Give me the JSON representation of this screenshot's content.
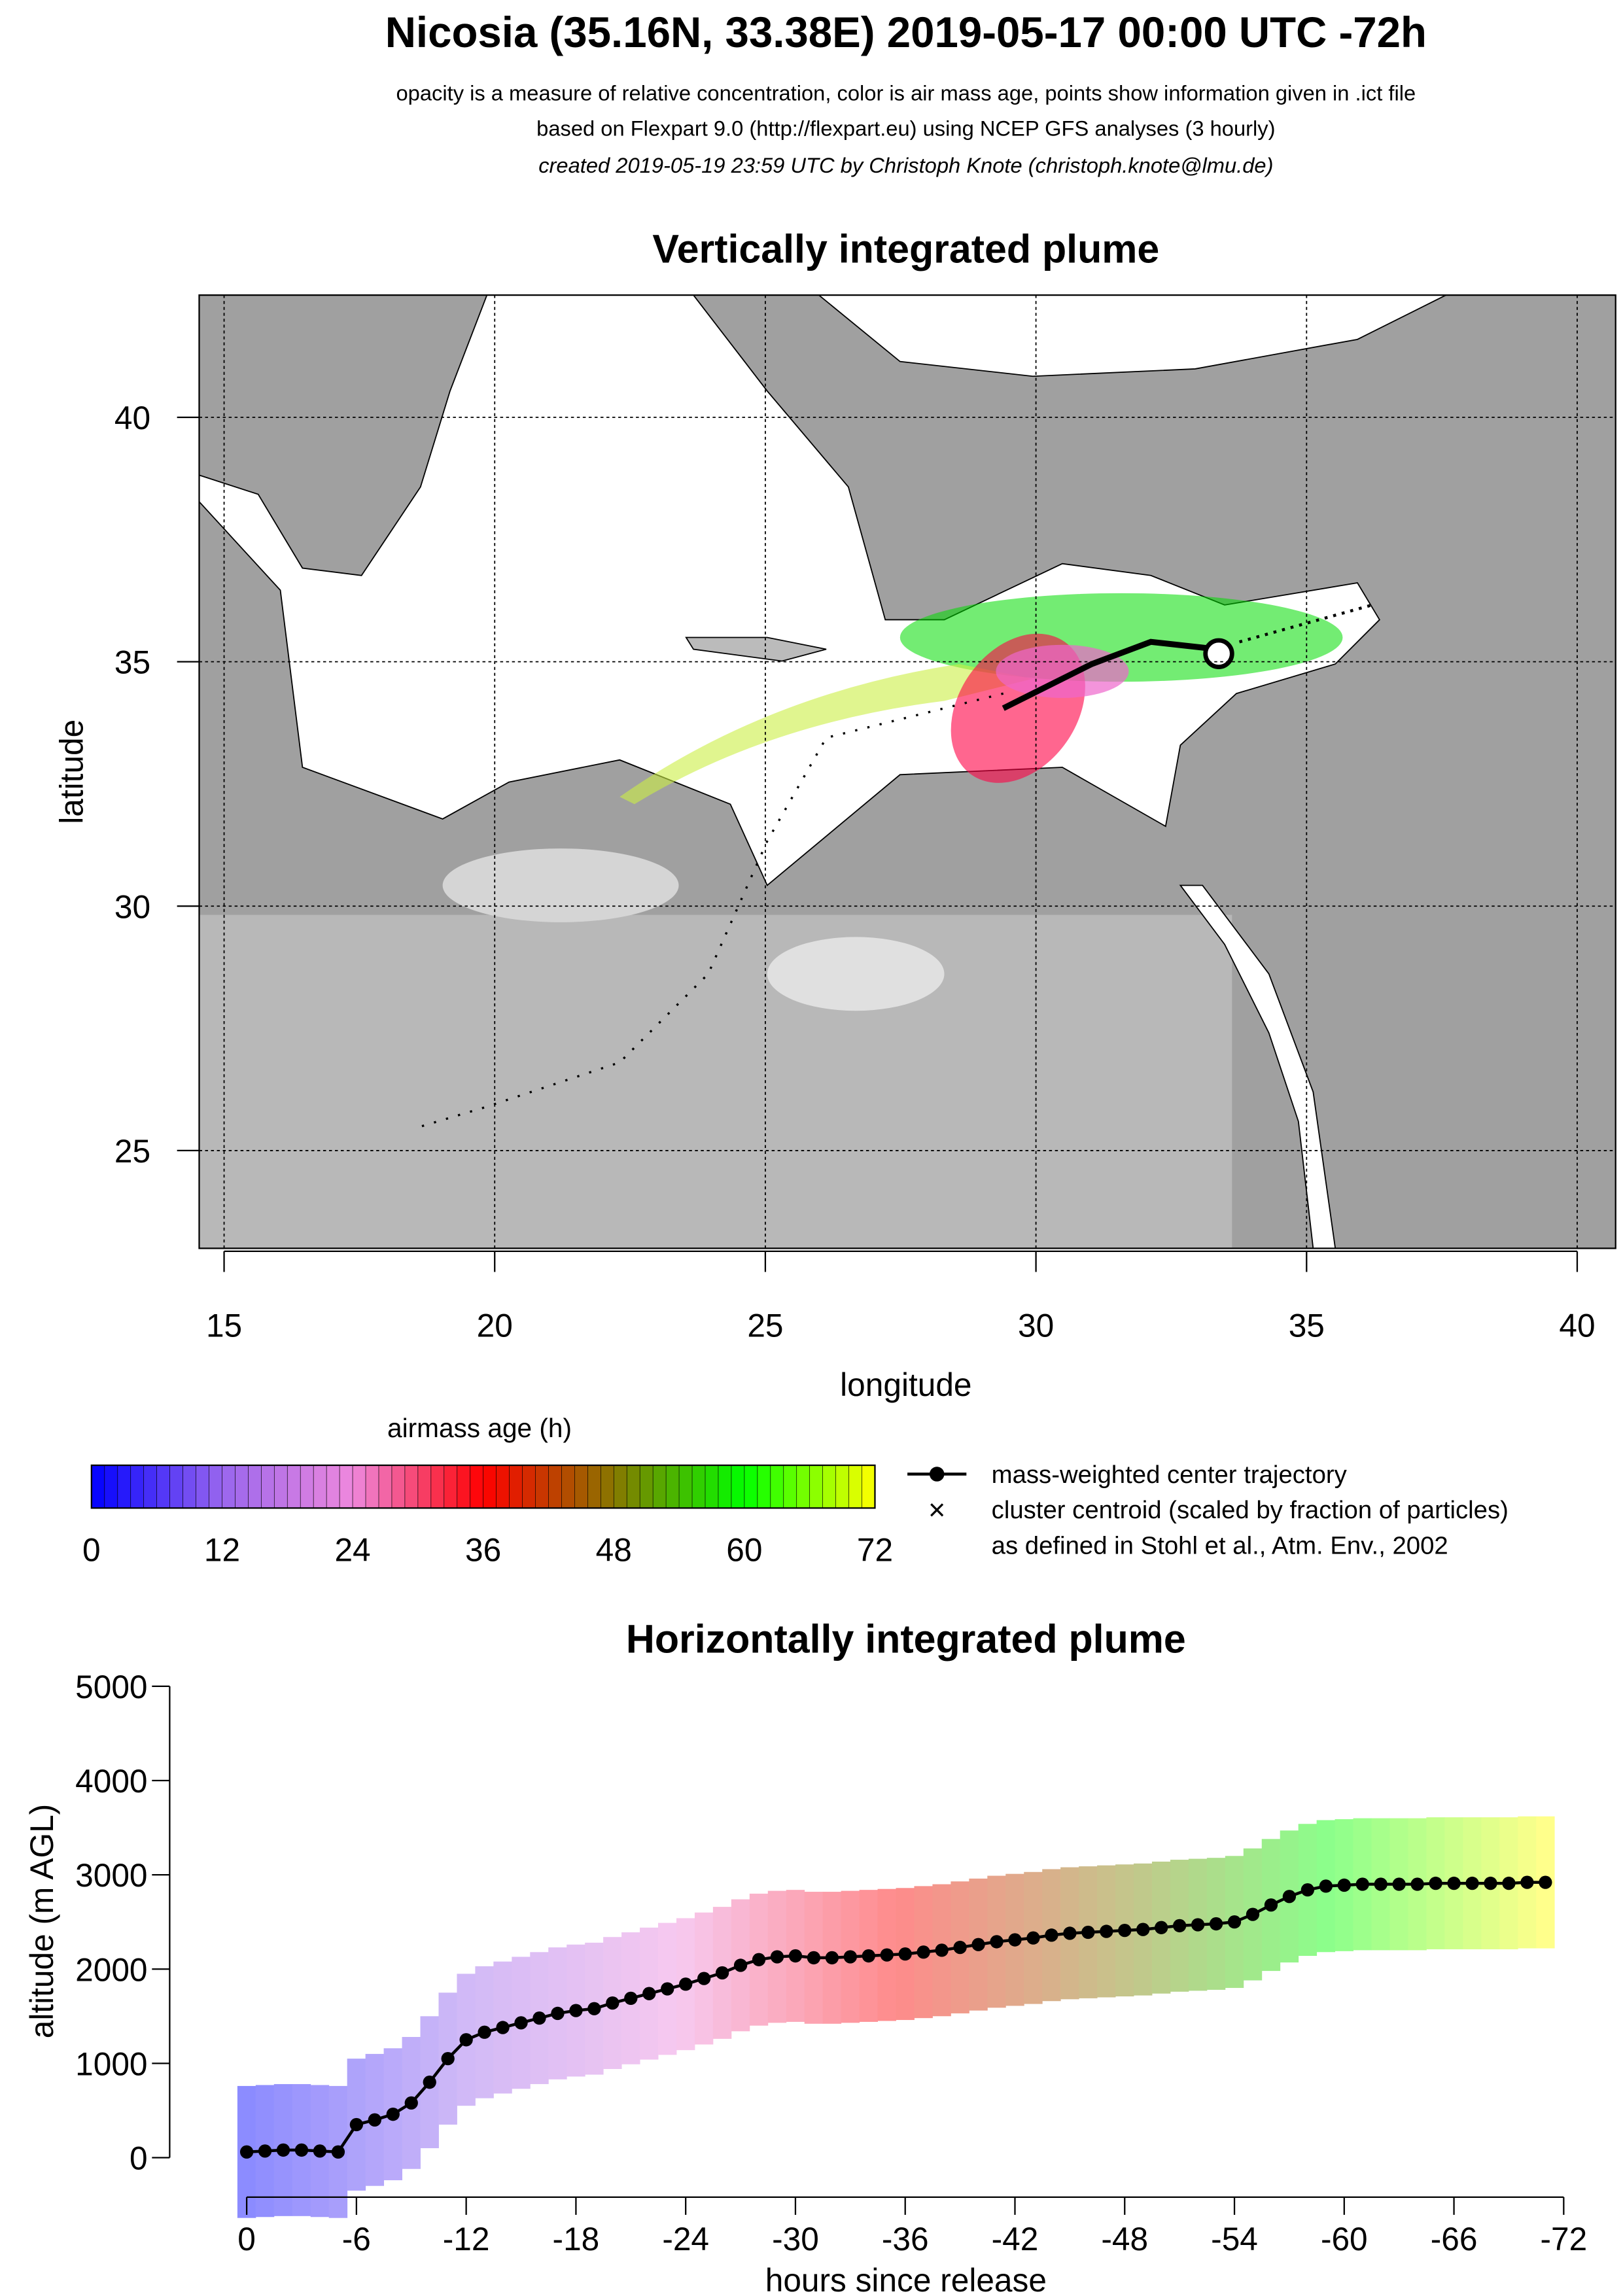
{
  "header": {
    "title": "Nicosia (35.16N, 33.38E) 2019-05-17 00:00 UTC -72h",
    "lines": [
      "opacity is a measure of relative concentration, color is air mass age, points show information given in .ict file",
      "based on Flexpart 9.0 (http://flexpart.eu) using NCEP GFS analyses (3 hourly)",
      "created 2019-05-19 23:59 UTC by Christoph Knote (christoph.knote@lmu.de)"
    ]
  },
  "chart_data": [
    {
      "type": "map",
      "title": "Vertically integrated plume",
      "x_label": "longitude",
      "y_label": "latitude",
      "xlim": [
        14.54,
        40.71
      ],
      "ylim": [
        23,
        42.5
      ],
      "xticks": [
        15,
        20,
        25,
        30,
        35,
        40
      ],
      "yticks": [
        25,
        30,
        35,
        40
      ],
      "grid": true
    },
    {
      "type": "colorbar",
      "title": "airmass age (h)",
      "lim": [
        0,
        72
      ],
      "ticks": [
        0,
        12,
        24,
        36,
        48,
        60,
        72
      ],
      "colors": [
        "#0000ff",
        "#9966ee",
        "#ee88dd",
        "#ff0000",
        "#887700",
        "#00ff00",
        "#ffff00"
      ],
      "legend": [
        "mass-weighted center trajectory",
        "cluster centroid (scaled by fraction of particles)",
        "as defined in Stohl et al., Atm. Env., 2002"
      ]
    },
    {
      "type": "line",
      "title": "Horizontally integrated plume",
      "x_label": "hours since release",
      "y_label": "altitude (m AGL)",
      "xlim": [
        3,
        -75
      ],
      "ylim": [
        -200,
        5200
      ],
      "xticks": [
        0,
        -6,
        -12,
        -18,
        -24,
        -30,
        -36,
        -42,
        -48,
        -54,
        -60,
        -66,
        -72
      ],
      "yticks": [
        0,
        1000,
        2000,
        3000,
        4000,
        5000
      ],
      "x": [
        0,
        -1,
        -2,
        -3,
        -4,
        -5,
        -6,
        -7,
        -8,
        -9,
        -10,
        -11,
        -12,
        -13,
        -14,
        -15,
        -16,
        -17,
        -18,
        -19,
        -20,
        -21,
        -22,
        -23,
        -24,
        -25,
        -26,
        -27,
        -28,
        -29,
        -30,
        -31,
        -32,
        -33,
        -34,
        -35,
        -36,
        -37,
        -38,
        -39,
        -40,
        -41,
        -42,
        -43,
        -44,
        -45,
        -46,
        -47,
        -48,
        -49,
        -50,
        -51,
        -52,
        -53,
        -54,
        -55,
        -56,
        -57,
        -58,
        -59,
        -60,
        -61,
        -62,
        -63,
        -64,
        -65,
        -66,
        -67,
        -68,
        -69,
        -70,
        -71
      ],
      "series": [
        {
          "name": "mass-weighted center trajectory",
          "color": "#000000",
          "values": [
            60,
            70,
            80,
            80,
            70,
            60,
            350,
            400,
            460,
            580,
            800,
            1050,
            1250,
            1330,
            1380,
            1430,
            1480,
            1530,
            1560,
            1580,
            1640,
            1690,
            1740,
            1790,
            1840,
            1900,
            1960,
            2040,
            2100,
            2130,
            2140,
            2120,
            2120,
            2130,
            2140,
            2150,
            2160,
            2180,
            2200,
            2230,
            2260,
            2290,
            2310,
            2330,
            2360,
            2380,
            2390,
            2400,
            2410,
            2420,
            2440,
            2460,
            2470,
            2480,
            2500,
            2580,
            2680,
            2770,
            2840,
            2880,
            2890,
            2900,
            2900,
            2900,
            2900,
            2910,
            2910,
            2910,
            2910,
            2910,
            2920,
            2920
          ]
        }
      ]
    }
  ]
}
